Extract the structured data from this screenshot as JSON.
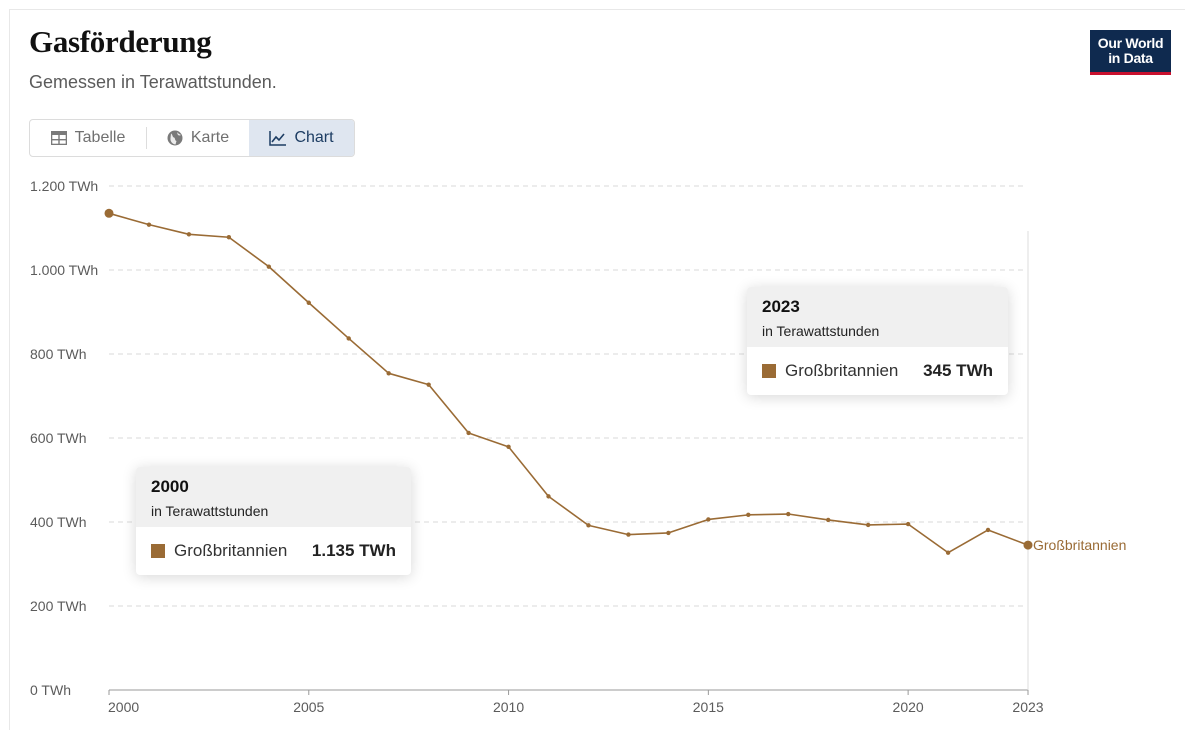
{
  "header": {
    "title": "Gasförderung",
    "subtitle": "Gemessen in Terawattstunden.",
    "logo_line1": "Our World",
    "logo_line2": "in Data"
  },
  "tabs": [
    {
      "label": "Tabelle",
      "icon": "table-icon",
      "active": false
    },
    {
      "label": "Karte",
      "icon": "globe-icon",
      "active": false
    },
    {
      "label": "Chart",
      "icon": "line-chart-icon",
      "active": true
    }
  ],
  "colors": {
    "series": "#9a6b35",
    "grid": "#d9d9d9",
    "axis": "#999999"
  },
  "chart_data": {
    "type": "line",
    "title": "Gasförderung",
    "subtitle": "Gemessen in Terawattstunden.",
    "xlim": [
      2000,
      2023
    ],
    "ylim": [
      0,
      1200
    ],
    "y_ticks": [
      0,
      200,
      400,
      600,
      800,
      1000,
      1200
    ],
    "y_tick_labels": [
      "0 TWh",
      "200 TWh",
      "400 TWh",
      "600 TWh",
      "800 TWh",
      "1.000 TWh",
      "1.200 TWh"
    ],
    "x_ticks": [
      2000,
      2005,
      2010,
      2015,
      2020,
      2023
    ],
    "x_tick_labels": [
      "2000",
      "2005",
      "2010",
      "2015",
      "2020",
      "2023"
    ],
    "grid": "horizontal dashed",
    "series": [
      {
        "name": "Großbritannien",
        "color": "#9a6b35",
        "x": [
          2000,
          2001,
          2002,
          2003,
          2004,
          2005,
          2006,
          2007,
          2008,
          2009,
          2010,
          2011,
          2012,
          2013,
          2014,
          2015,
          2016,
          2017,
          2018,
          2019,
          2020,
          2021,
          2022,
          2023
        ],
        "y": [
          1135,
          1108,
          1085,
          1078,
          1008,
          922,
          837,
          754,
          727,
          612,
          579,
          461,
          392,
          370,
          374,
          406,
          417,
          419,
          405,
          393,
          395,
          327,
          381,
          345
        ]
      }
    ],
    "tooltips": [
      {
        "year": "2000",
        "unit": "in Terawattstunden",
        "series": "Großbritannien",
        "value": "1.135 TWh"
      },
      {
        "year": "2023",
        "unit": "in Terawattstunden",
        "series": "Großbritannien",
        "value": "345 TWh"
      }
    ]
  }
}
